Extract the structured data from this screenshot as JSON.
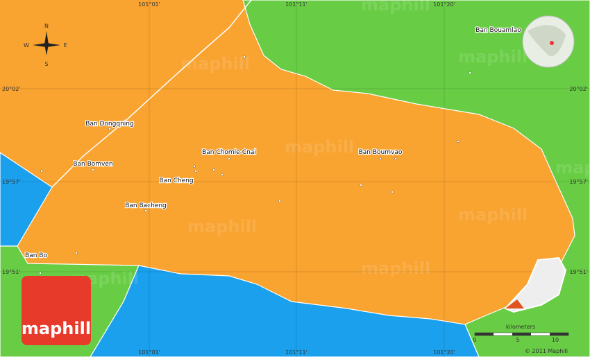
{
  "logo": "maphill",
  "watermark": "maphill",
  "copyright": "© 2011 Maphill",
  "top_labels": [
    "101°01'",
    "101°11'",
    "101°20'"
  ],
  "bottom_labels": [
    "101°01'",
    "101°11'",
    "101°20'"
  ],
  "left_labels": [
    "20°02'",
    "19°57'",
    "19°51'"
  ],
  "right_labels": [
    "20°02'",
    "19°57'",
    "19°51'"
  ],
  "compass": {
    "n": "N",
    "e": "E",
    "s": "S",
    "w": "W"
  },
  "scale": {
    "unit": "kilometers",
    "ticks": [
      "0",
      "5",
      "10"
    ]
  },
  "places": [
    "Ban Bouamlao",
    "Ban Dongqning",
    "Ban Bomven",
    "Ban Chomle-Cnai",
    "Ban Cheng",
    "Ban Bacheng",
    "Ban Boumvao",
    "Ban Bo"
  ]
}
